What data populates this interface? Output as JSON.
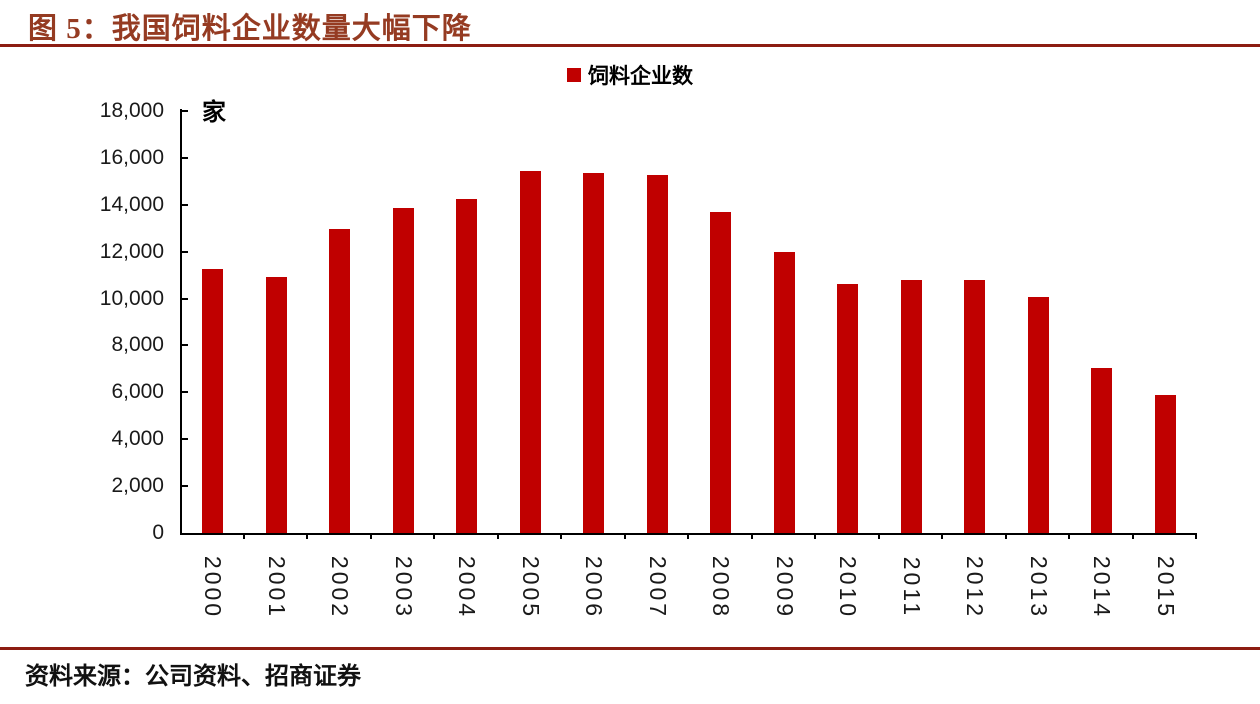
{
  "figure": {
    "title": "图 5：我国饲料企业数量大幅下降",
    "source": "资料来源：公司资料、招商证券"
  },
  "chart_data": {
    "type": "bar",
    "title": "图 5：我国饲料企业数量大幅下降",
    "legend": [
      "饲料企业数"
    ],
    "legend_position": "top-center",
    "unit_label": "家",
    "categories": [
      "2000",
      "2001",
      "2002",
      "2003",
      "2004",
      "2005",
      "2006",
      "2007",
      "2008",
      "2009",
      "2010",
      "2011",
      "2012",
      "2013",
      "2014",
      "2015"
    ],
    "values": [
      11250,
      10900,
      12950,
      13850,
      14250,
      15450,
      15350,
      15250,
      13700,
      12000,
      10600,
      10800,
      10800,
      10050,
      7050,
      5900
    ],
    "xlabel": "",
    "ylabel": "家",
    "ylim": [
      0,
      18000
    ],
    "yticks": [
      {
        "value": 0,
        "label": "0"
      },
      {
        "value": 2000,
        "label": "2,000"
      },
      {
        "value": 4000,
        "label": "4,000"
      },
      {
        "value": 6000,
        "label": "6,000"
      },
      {
        "value": 8000,
        "label": "8,000"
      },
      {
        "value": 10000,
        "label": "10,000"
      },
      {
        "value": 12000,
        "label": "12,000"
      },
      {
        "value": 14000,
        "label": "14,000"
      },
      {
        "value": 16000,
        "label": "16,000"
      },
      {
        "value": 18000,
        "label": "18,000"
      }
    ],
    "grid": false
  },
  "colors": {
    "bar": "#c00000",
    "title_text": "#953b22",
    "rule": "#8c1d12",
    "axis": "#000000",
    "tick_text": "#1a1a1a"
  }
}
